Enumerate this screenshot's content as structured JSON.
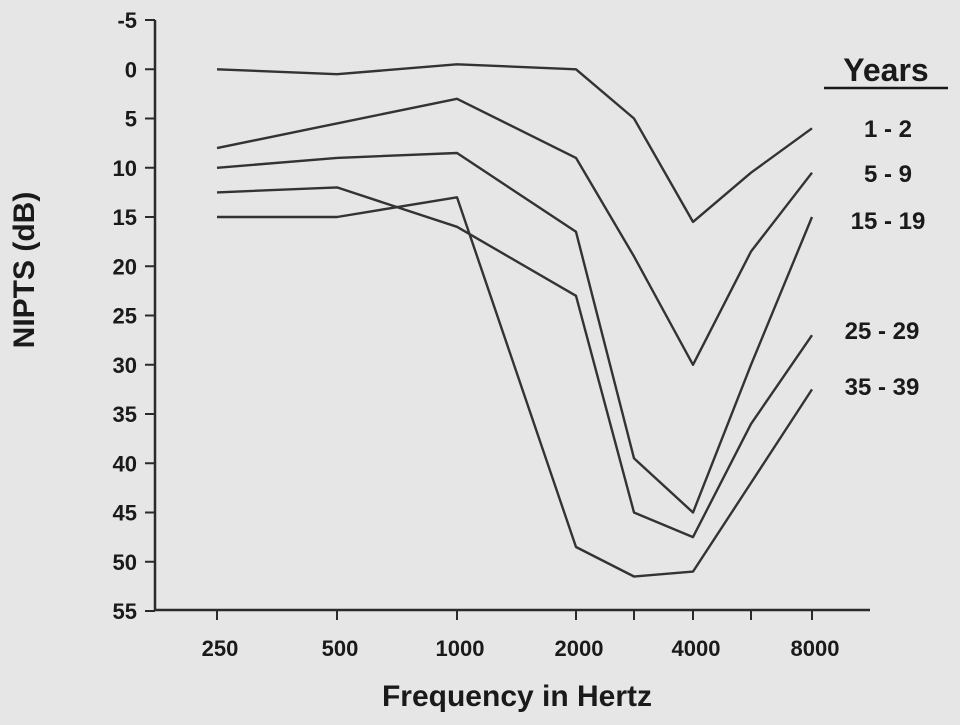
{
  "chart_data": {
    "type": "line",
    "title": "",
    "xlabel": "Frequency in Hertz",
    "ylabel": "NIPTS (dB)",
    "x": [
      250,
      500,
      1000,
      2000,
      3000,
      4000,
      6000,
      8000
    ],
    "x_tick_labels": [
      "250",
      "500",
      "1000",
      "2000",
      "4000",
      "8000"
    ],
    "x_tick_values": [
      250,
      500,
      1000,
      2000,
      4000,
      8000
    ],
    "x_minor_ticks": [
      3000,
      6000
    ],
    "x_scale": "log",
    "y_tick_labels": [
      "-5",
      "0",
      "5",
      "10",
      "15",
      "20",
      "25",
      "30",
      "35",
      "40",
      "45",
      "50",
      "55"
    ],
    "ylim": [
      -5,
      55
    ],
    "y_inverted": true,
    "grid": false,
    "legend": {
      "title": "Years",
      "placement": "right"
    },
    "series": [
      {
        "name": "1 - 2",
        "values": [
          0,
          0.5,
          -0.5,
          0,
          5,
          15.5,
          10.5,
          6
        ]
      },
      {
        "name": "5 - 9",
        "values": [
          8,
          5.5,
          3,
          9,
          19,
          30,
          18.5,
          10.5
        ]
      },
      {
        "name": "15 - 19",
        "values": [
          10,
          9,
          8.5,
          16.5,
          39.5,
          45,
          30,
          15
        ]
      },
      {
        "name": "25 - 29",
        "values": [
          12.5,
          12,
          16,
          23,
          45,
          47.5,
          36,
          27
        ]
      },
      {
        "name": "35 - 39",
        "values": [
          15,
          15,
          13,
          48.5,
          51.5,
          51,
          42,
          32.5
        ]
      }
    ]
  }
}
